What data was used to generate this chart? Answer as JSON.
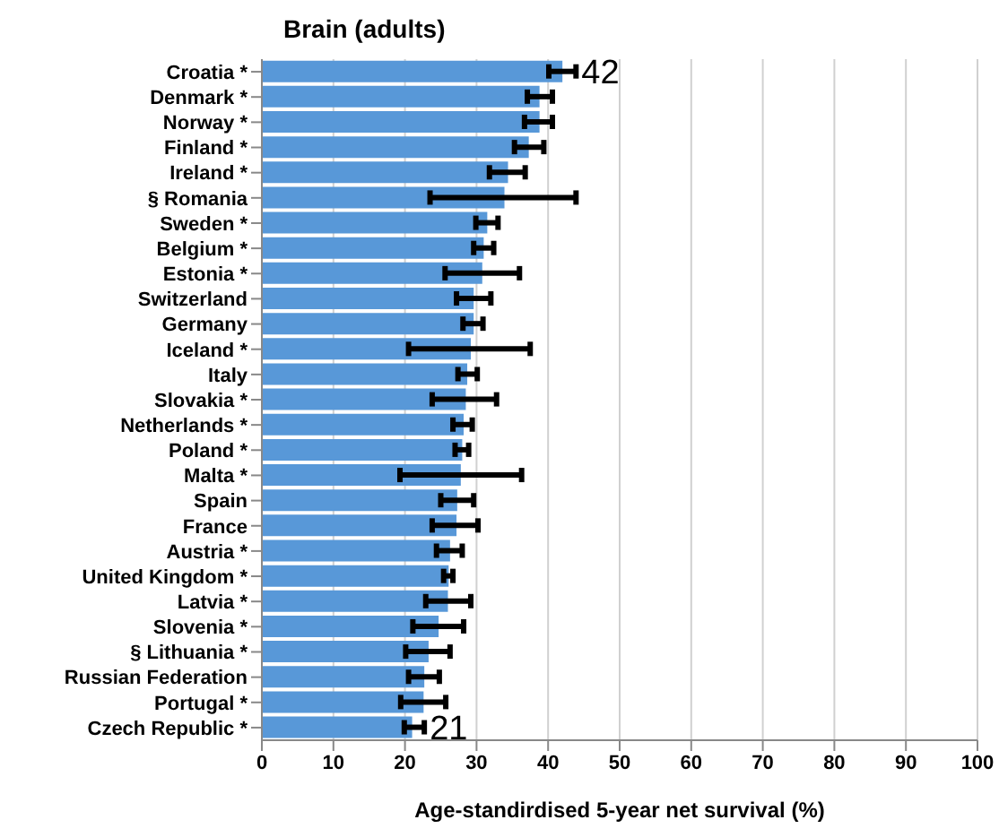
{
  "chart_data": {
    "type": "bar",
    "orientation": "horizontal",
    "title": "Brain (adults)",
    "xlabel": "Age-standirdised 5-year net survival (%)",
    "categories": [
      "Croatia *",
      "Denmark *",
      "Norway *",
      "Finland *",
      "Ireland *",
      "§  Romania",
      "Sweden *",
      "Belgium *",
      "Estonia *",
      "Switzerland",
      "Germany",
      "Iceland *",
      "Italy",
      "Slovakia *",
      "Netherlands *",
      "Poland *",
      "Malta *",
      "Spain",
      "France",
      "Austria *",
      "United Kingdom *",
      "Latvia *",
      "Slovenia *",
      "§  Lithuania *",
      "Russian Federation",
      "Portugal *",
      "Czech Republic *"
    ],
    "values": [
      42,
      38.8,
      38.8,
      37.3,
      34.4,
      33.9,
      31.5,
      31.0,
      30.8,
      29.6,
      29.6,
      29.2,
      28.7,
      28.5,
      28.2,
      28.0,
      27.8,
      27.3,
      27.2,
      26.3,
      26.1,
      26.0,
      24.7,
      23.3,
      22.7,
      22.6,
      21
    ],
    "errors": [
      [
        40.1,
        43.9
      ],
      [
        37.1,
        40.6
      ],
      [
        36.7,
        40.6
      ],
      [
        35.3,
        39.4
      ],
      [
        31.8,
        36.8
      ],
      [
        23.5,
        43.9
      ],
      [
        29.9,
        33.0
      ],
      [
        29.6,
        32.4
      ],
      [
        25.6,
        36.0
      ],
      [
        27.2,
        32.0
      ],
      [
        28.1,
        30.9
      ],
      [
        20.5,
        37.5
      ],
      [
        27.4,
        30.1
      ],
      [
        23.8,
        32.8
      ],
      [
        26.7,
        29.4
      ],
      [
        27.0,
        28.9
      ],
      [
        19.3,
        36.3
      ],
      [
        25.0,
        29.6
      ],
      [
        23.8,
        30.2
      ],
      [
        24.4,
        28.0
      ],
      [
        25.4,
        26.7
      ],
      [
        22.9,
        29.2
      ],
      [
        21.1,
        28.2
      ],
      [
        20.1,
        26.3
      ],
      [
        20.5,
        24.8
      ],
      [
        19.4,
        25.7
      ],
      [
        19.9,
        22.7
      ]
    ],
    "value_labels": [
      "42",
      null,
      null,
      null,
      null,
      null,
      null,
      null,
      null,
      null,
      null,
      null,
      null,
      null,
      null,
      null,
      null,
      null,
      null,
      null,
      null,
      null,
      null,
      null,
      null,
      null,
      "21"
    ],
    "color": "#5898d8",
    "xlim": [
      0,
      100
    ],
    "xticks": [
      0,
      10,
      20,
      30,
      40,
      50,
      60,
      70,
      80,
      90,
      100
    ],
    "grid": "x",
    "legend": false
  }
}
